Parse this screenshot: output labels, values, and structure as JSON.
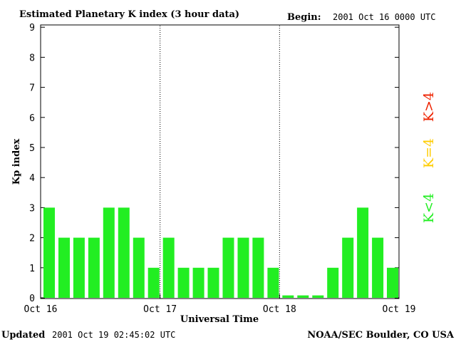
{
  "header": {
    "title": "Estimated Planetary K index (3 hour data)",
    "begin_label": "Begin:",
    "begin_value": "2001 Oct 16 0000 UTC"
  },
  "footer": {
    "updated_label": "Updated",
    "updated_value": "2001 Oct 19 02:45:02 UTC",
    "credit": "NOAA/SEC Boulder, CO USA"
  },
  "legend": {
    "high": "K>4",
    "equal": "K=4",
    "low": "K<4"
  },
  "chart_data": {
    "type": "bar",
    "title": "Estimated Planetary K index (3 hour data)",
    "xlabel": "Universal Time",
    "ylabel": "Kp index",
    "ylim": [
      0,
      9
    ],
    "yticks": [
      "0",
      "1",
      "2",
      "3",
      "4",
      "5",
      "6",
      "7",
      "8",
      "9"
    ],
    "xtick_labels": [
      "Oct 16",
      "Oct 17",
      "Oct 18",
      "Oct 19"
    ],
    "day_dividers": [
      "Oct 17",
      "Oct 18"
    ],
    "grid": false,
    "legend_placement": "right",
    "colors": {
      "low": "#22ee22",
      "equal": "#ffcc00",
      "high": "#ee2200"
    },
    "categories": [
      "Oct 16 00",
      "Oct 16 03",
      "Oct 16 06",
      "Oct 16 09",
      "Oct 16 12",
      "Oct 16 15",
      "Oct 16 18",
      "Oct 16 21",
      "Oct 17 00",
      "Oct 17 03",
      "Oct 17 06",
      "Oct 17 09",
      "Oct 17 12",
      "Oct 17 15",
      "Oct 17 18",
      "Oct 17 21",
      "Oct 18 00",
      "Oct 18 03",
      "Oct 18 06",
      "Oct 18 09",
      "Oct 18 12",
      "Oct 18 15",
      "Oct 18 18",
      "Oct 18 21"
    ],
    "values": [
      3,
      2,
      2,
      2,
      3,
      3,
      2,
      1,
      2,
      1,
      1,
      1,
      2,
      2,
      2,
      1,
      0,
      0,
      0,
      1,
      2,
      3,
      2,
      1
    ]
  }
}
